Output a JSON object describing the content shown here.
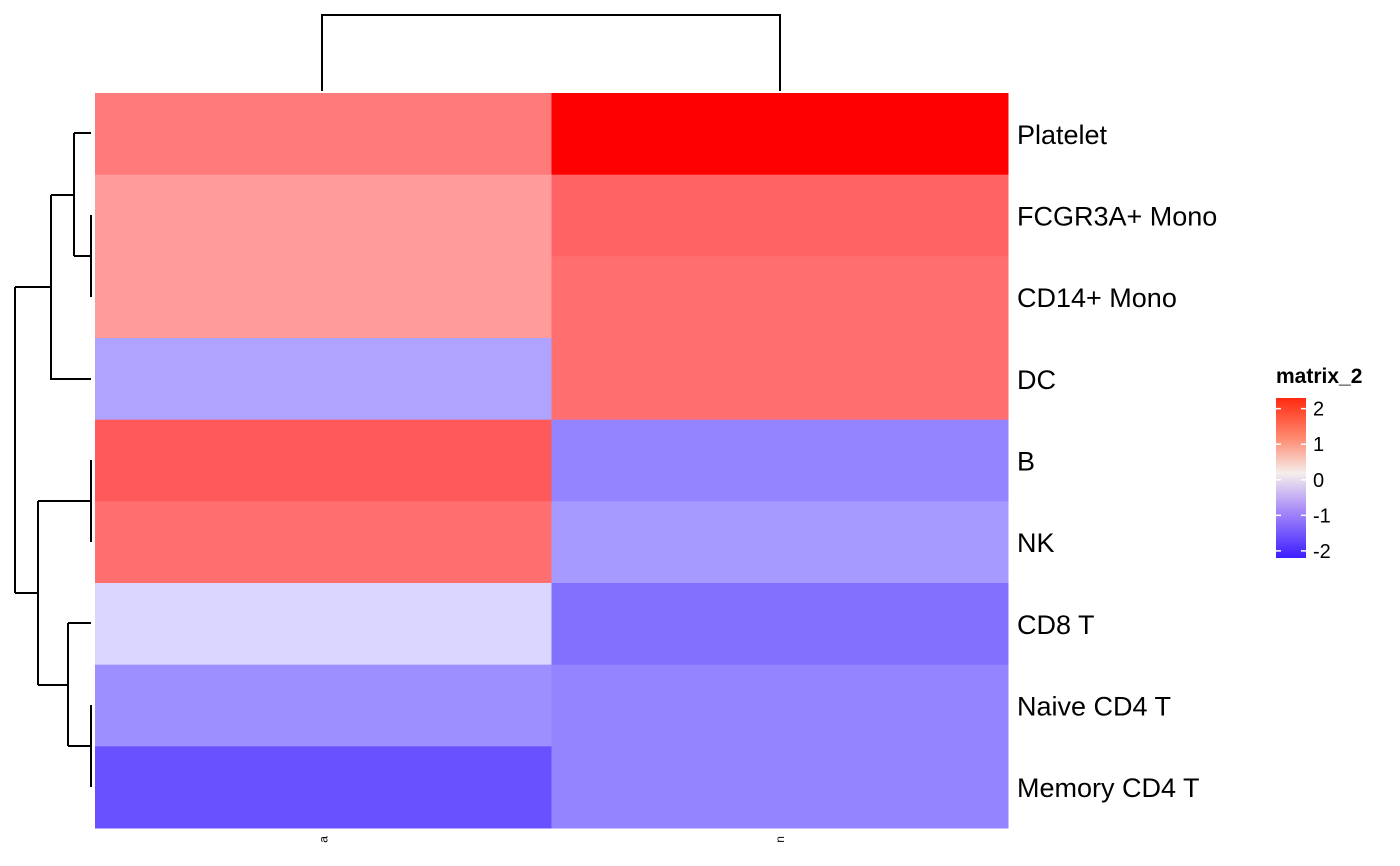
{
  "chart_data": {
    "type": "heatmap",
    "rows": [
      "Platelet",
      "FCGR3A+ Mono",
      "CD14+ Mono",
      "DC",
      "B",
      "NK",
      "CD8 T",
      "Naive CD4 T",
      "Memory CD4 T"
    ],
    "columns": [
      "a",
      "n"
    ],
    "values": [
      [
        1.2,
        2.3
      ],
      [
        0.9,
        1.4
      ],
      [
        0.9,
        1.3
      ],
      [
        -0.9,
        1.3
      ],
      [
        1.5,
        -1.2
      ],
      [
        1.3,
        -1.0
      ],
      [
        -0.4,
        -1.4
      ],
      [
        -1.1,
        -1.2
      ],
      [
        -1.7,
        -1.2
      ]
    ],
    "legend": {
      "title": "matrix_2",
      "ticks": [
        2,
        1,
        0,
        -1,
        -2
      ],
      "tick_labels": [
        "2",
        "1",
        "0",
        "-1",
        "-2"
      ],
      "range": [
        -2.2,
        2.3
      ]
    },
    "colors": {
      "low": "#3B1EFF",
      "mid": "#FFFFFF",
      "high": "#FF0000"
    },
    "row_dendrogram": true,
    "column_dendrogram": true,
    "legend_position": "right"
  }
}
